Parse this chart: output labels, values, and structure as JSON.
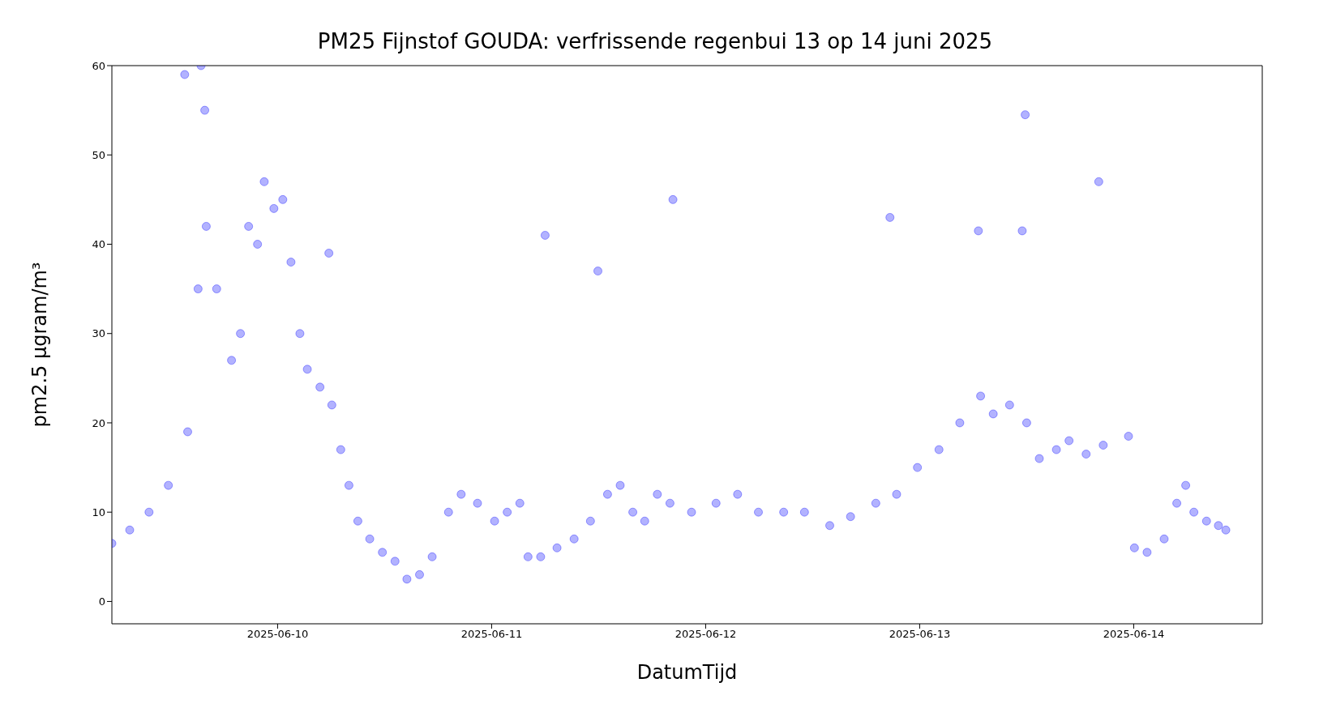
{
  "chart_data": {
    "type": "scatter",
    "title": "PM25 Fijnstof GOUDA: verfrissende regenbui 13 op 14 juni 2025",
    "xlabel": "DatumTijd",
    "ylabel": "pm2.5 μgram/m³",
    "marker": "circle",
    "grid": false,
    "legend": false,
    "xlim": [
      "2025-06-09T05:25",
      "2025-06-14T14:25"
    ],
    "xticks": [
      "2025-06-10",
      "2025-06-11",
      "2025-06-12",
      "2025-06-13",
      "2025-06-14"
    ],
    "ylim": [
      -2.5,
      60
    ],
    "yticks": [
      0,
      10,
      20,
      30,
      40,
      50,
      60
    ],
    "series": [
      {
        "color": "#0000ff",
        "x": [
          "2025-06-09T05:25",
          "2025-06-09T07:25",
          "2025-06-09T09:35",
          "2025-06-09T11:45",
          "2025-06-09T13:55",
          "2025-06-09T15:05",
          "2025-06-09T16:00",
          "2025-06-09T17:10",
          "2025-06-09T18:50",
          "2025-06-09T19:50",
          "2025-06-09T20:45",
          "2025-06-09T21:45",
          "2025-06-09T22:30",
          "2025-06-09T23:35",
          "2025-06-10T00:35",
          "2025-06-10T01:30",
          "2025-06-10T02:30",
          "2025-06-10T03:20",
          "2025-06-10T04:45",
          "2025-06-10T06:05",
          "2025-06-10T07:05",
          "2025-06-10T08:00",
          "2025-06-10T09:00",
          "2025-06-10T10:20",
          "2025-06-10T11:45",
          "2025-06-10T13:10",
          "2025-06-10T14:30",
          "2025-06-10T15:55",
          "2025-06-10T17:20",
          "2025-06-10T19:10",
          "2025-06-10T20:35",
          "2025-06-10T22:25",
          "2025-06-11T00:20",
          "2025-06-11T01:45",
          "2025-06-11T03:10",
          "2025-06-11T04:05",
          "2025-06-11T05:30",
          "2025-06-11T07:20",
          "2025-06-11T09:15",
          "2025-06-11T11:05",
          "2025-06-11T13:00",
          "2025-06-11T14:25",
          "2025-06-11T15:50",
          "2025-06-11T17:10",
          "2025-06-11T18:35",
          "2025-06-11T20:00",
          "2025-06-11T22:25",
          "2025-06-12T01:10",
          "2025-06-12T03:35",
          "2025-06-12T05:55",
          "2025-06-12T08:45",
          "2025-06-12T11:05",
          "2025-06-12T13:55",
          "2025-06-12T16:15",
          "2025-06-12T19:05",
          "2025-06-12T21:25",
          "2025-06-12T23:45",
          "2025-06-13T02:10",
          "2025-06-13T04:30",
          "2025-06-13T06:50",
          "2025-06-13T08:15",
          "2025-06-13T10:05",
          "2025-06-13T12:00",
          "2025-06-13T13:25",
          "2025-06-13T15:20",
          "2025-06-13T16:45",
          "2025-06-13T18:40",
          "2025-06-13T20:35",
          "2025-06-13T23:25",
          "2025-06-14T00:05",
          "2025-06-14T01:30",
          "2025-06-14T03:25",
          "2025-06-14T04:50",
          "2025-06-14T05:50",
          "2025-06-14T06:45",
          "2025-06-14T08:10",
          "2025-06-14T09:30",
          "2025-06-14T10:20",
          "2025-06-09T13:35",
          "2025-06-09T15:25",
          "2025-06-09T15:50",
          "2025-06-10T05:45",
          "2025-06-11T06:00",
          "2025-06-11T11:55",
          "2025-06-11T20:20",
          "2025-06-12T20:40",
          "2025-06-13T06:35",
          "2025-06-13T11:30",
          "2025-06-13T11:50",
          "2025-06-13T20:05"
        ],
        "values": [
          6.5,
          8,
          10,
          13,
          19,
          35,
          42,
          35,
          27,
          30,
          42,
          40,
          47,
          44,
          45,
          38,
          30,
          26,
          24,
          22,
          17,
          13,
          9,
          7,
          5.5,
          4.5,
          2.5,
          3,
          5,
          10,
          12,
          11,
          9,
          10,
          11,
          5,
          5,
          6,
          7,
          9,
          12,
          13,
          10,
          9,
          12,
          11,
          10,
          11,
          12,
          10,
          10,
          10,
          8.5,
          9.5,
          11,
          12,
          15,
          17,
          20,
          23,
          21,
          22,
          20,
          16,
          17,
          18,
          16.5,
          17.5,
          18.5,
          6,
          5.5,
          7,
          11,
          13,
          10,
          9,
          8.5,
          8,
          59,
          60,
          55,
          39,
          41,
          37,
          45,
          43,
          41.5,
          41.5,
          54.5,
          47
        ]
      }
    ]
  }
}
